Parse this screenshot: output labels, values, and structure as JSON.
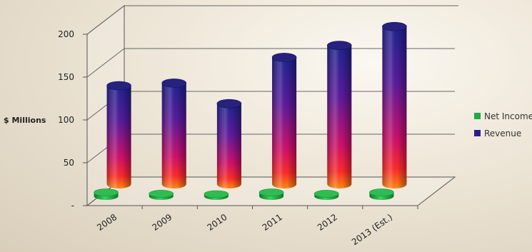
{
  "chart_data": {
    "type": "bar",
    "title": "",
    "xlabel": "",
    "ylabel": "$ Millions",
    "categories": [
      "2008",
      "2009",
      "2010",
      "2011",
      "2012",
      "2013 (Est.)"
    ],
    "ylim": [
      0,
      200
    ],
    "yticks": [
      {
        "value": 0,
        "label": "-"
      },
      {
        "value": 50,
        "label": "50"
      },
      {
        "value": 100,
        "label": "100"
      },
      {
        "value": 150,
        "label": "150"
      },
      {
        "value": 200,
        "label": "200"
      }
    ],
    "series": [
      {
        "name": "Net Income",
        "values": [
          3,
          2,
          1,
          3,
          2,
          3
        ],
        "color": "#1faa44"
      },
      {
        "name": "Revenue",
        "values": [
          115,
          118,
          94,
          148,
          162,
          184
        ],
        "color": "#2b1e8c"
      }
    ],
    "grid": true,
    "legend": "right"
  }
}
